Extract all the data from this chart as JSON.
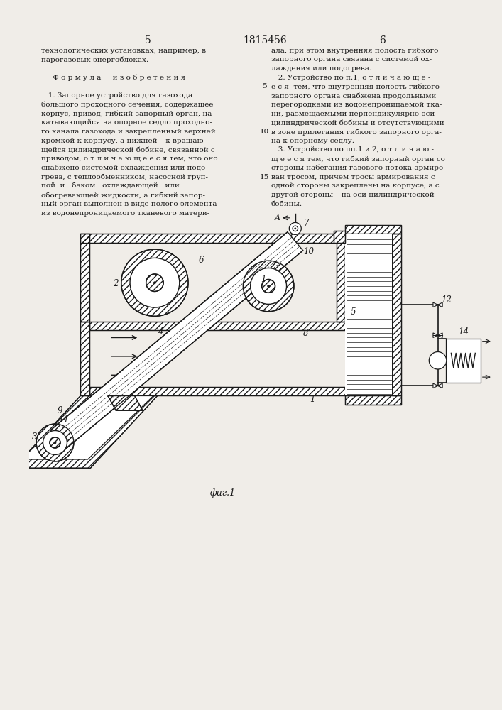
{
  "title": "1815456",
  "page_left": "5",
  "page_right": "6",
  "fig_label": "фиг.1",
  "bg_color": "#f0ede8",
  "line_color": "#1a1a1a",
  "text_color": "#1a1a1a",
  "left_text_lines": [
    "технологических установках, например, в",
    "парогазовых энергоблоках.",
    "",
    "     Ф о р м у л а     и з о б р е т е н и я",
    "",
    "   1. Запорное устройство для газохода",
    "большого проходного сечения, содержащее",
    "корпус, привод, гибкий запорный орган, на-",
    "катывающийся на опорное седло проходно-",
    "го канала газохода и закрепленный верхней",
    "кромкой к корпусу, а нижней – к вращаю-",
    "щейся цилиндрической бобине, связанной с",
    "приводом, о т л и ч а ю щ е е с я тем, что оно",
    "снабжено системой охлаждения или подо-",
    "грева, с теплообменником, насосной груп-",
    "пой  и   баком   охлаждающей   или",
    "обогревающей жидкости, а гибкий запор-",
    "ный орган выполнен в виде полого элемента",
    "из водонепроницаемого тканевого матери-"
  ],
  "right_text_lines": [
    "ала, при этом внутренняя полость гибкого",
    "запорного органа связана с системой ох-",
    "лаждения или подогрева.",
    "   2. Устройство по п.1, о т л и ч а ю щ е -",
    "е с я  тем, что внутренняя полость гибкого",
    "запорного органа снабжена продольными",
    "перегородками из водонепроницаемой тка-",
    "ни, размещаемыми перпендикулярно оси",
    "цилиндрической бобины и отсутствующими",
    "в зоне прилегания гибкого запорного орга-",
    "на к опорному седлу.",
    "   3. Устройство по пп.1 и 2, о т л и ч а ю -",
    "щ е е с я тем, что гибкий запорный орган со",
    "стороны набегания газового потока армиро-",
    "ван тросом, причем тросы армирования с",
    "одной стороны закреплены на корпусе, а с",
    "другой стороны – на оси цилиндрической",
    "бобины."
  ],
  "line_number_left": "5",
  "line_number_right": "10",
  "line_number_right2": "15"
}
